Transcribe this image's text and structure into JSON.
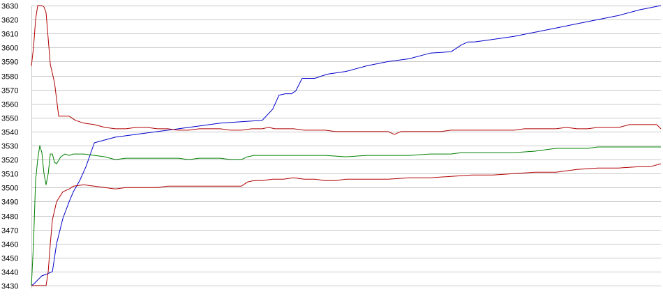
{
  "chart_data": {
    "type": "line",
    "title": "",
    "xlabel": "",
    "ylabel": "",
    "ylim": [
      3430,
      3630
    ],
    "xlim": [
      0,
      300
    ],
    "grid": true,
    "yticks": [
      3430,
      3440,
      3450,
      3460,
      3470,
      3480,
      3490,
      3500,
      3510,
      3520,
      3530,
      3540,
      3550,
      3560,
      3570,
      3580,
      3590,
      3600,
      3610,
      3620,
      3630
    ],
    "colors": {
      "blue": "#0000cc",
      "upper_red": "#b00000",
      "green": "#008000",
      "lower_red": "#b00000",
      "grid": "#c8c8c8"
    },
    "series": [
      {
        "key": "blue",
        "x": [
          0,
          1,
          3,
          5,
          7,
          10,
          12,
          15,
          18,
          20,
          23,
          26,
          30,
          40,
          50,
          60,
          70,
          80,
          90,
          100,
          110,
          115,
          118,
          121,
          124,
          126,
          127,
          129,
          135,
          141,
          150,
          160,
          170,
          180,
          190,
          200,
          205,
          208,
          211,
          216,
          230,
          240,
          250,
          260,
          270,
          280,
          290,
          300
        ],
        "y": [
          3430,
          3431,
          3434,
          3437,
          3438,
          3440,
          3460,
          3478,
          3490,
          3497,
          3505,
          3515,
          3532,
          3536,
          3538,
          3540,
          3542,
          3544,
          3546,
          3547,
          3548,
          3556,
          3566,
          3567,
          3567,
          3569,
          3572,
          3578,
          3578,
          3581,
          3583,
          3587,
          3590,
          3592,
          3596,
          3597,
          3602,
          3604,
          3604,
          3605,
          3608,
          3611,
          3614,
          3617,
          3620,
          3623,
          3627,
          3630
        ]
      },
      {
        "key": "upper_red",
        "x": [
          0,
          1,
          2,
          3,
          4,
          5,
          6,
          7,
          9,
          11,
          13,
          15,
          18,
          21,
          25,
          30,
          35,
          40,
          45,
          50,
          55,
          60,
          65,
          70,
          75,
          80,
          85,
          90,
          95,
          100,
          105,
          110,
          113,
          116,
          120,
          125,
          130,
          135,
          140,
          145,
          150,
          155,
          160,
          165,
          170,
          173,
          176,
          180,
          185,
          190,
          195,
          200,
          205,
          210,
          215,
          220,
          225,
          230,
          235,
          240,
          245,
          250,
          255,
          260,
          265,
          270,
          275,
          280,
          285,
          290,
          295,
          298,
          300
        ],
        "y": [
          3587,
          3600,
          3620,
          3630,
          3630,
          3630,
          3629,
          3625,
          3588,
          3575,
          3551,
          3551,
          3551,
          3548,
          3546,
          3545,
          3543,
          3542,
          3542,
          3543,
          3543,
          3542,
          3542,
          3541,
          3541,
          3542,
          3542,
          3542,
          3541,
          3541,
          3542,
          3542,
          3543,
          3542,
          3542,
          3542,
          3541,
          3541,
          3541,
          3540,
          3540,
          3540,
          3540,
          3540,
          3540,
          3538,
          3540,
          3540,
          3540,
          3540,
          3540,
          3541,
          3541,
          3541,
          3541,
          3541,
          3541,
          3541,
          3542,
          3542,
          3542,
          3542,
          3543,
          3542,
          3542,
          3543,
          3543,
          3543,
          3545,
          3545,
          3545,
          3545,
          3542
        ]
      },
      {
        "key": "green",
        "x": [
          0,
          1,
          2,
          3,
          4,
          5,
          6,
          7,
          8,
          9,
          10,
          11,
          12,
          14,
          16,
          18,
          20,
          25,
          30,
          35,
          40,
          45,
          50,
          55,
          60,
          65,
          70,
          75,
          80,
          85,
          90,
          95,
          100,
          103,
          106,
          110,
          115,
          120,
          130,
          140,
          150,
          160,
          170,
          180,
          190,
          200,
          205,
          210,
          220,
          230,
          240,
          245,
          250,
          255,
          260,
          265,
          270,
          280,
          290,
          300
        ],
        "y": [
          3430,
          3460,
          3505,
          3520,
          3530,
          3525,
          3510,
          3502,
          3510,
          3524,
          3524,
          3518,
          3517,
          3522,
          3524,
          3523,
          3524,
          3524,
          3523,
          3522,
          3520,
          3521,
          3521,
          3521,
          3521,
          3521,
          3521,
          3520,
          3521,
          3521,
          3521,
          3520,
          3520,
          3522,
          3523,
          3523,
          3523,
          3523,
          3523,
          3523,
          3522,
          3523,
          3523,
          3523,
          3524,
          3524,
          3525,
          3525,
          3525,
          3525,
          3526,
          3527,
          3528,
          3528,
          3528,
          3528,
          3529,
          3529,
          3529,
          3529
        ]
      },
      {
        "key": "lower_red",
        "x": [
          0,
          1,
          2,
          3,
          4,
          5,
          6,
          7,
          8,
          9,
          10,
          12,
          15,
          18,
          20,
          25,
          30,
          35,
          40,
          45,
          50,
          55,
          60,
          65,
          70,
          75,
          80,
          85,
          90,
          95,
          100,
          103,
          106,
          110,
          115,
          120,
          125,
          130,
          135,
          140,
          145,
          150,
          160,
          170,
          180,
          190,
          200,
          210,
          220,
          230,
          240,
          250,
          255,
          260,
          270,
          280,
          290,
          295,
          300
        ],
        "y": [
          3430,
          3430,
          3430,
          3430,
          3430,
          3430,
          3430,
          3430,
          3440,
          3460,
          3477,
          3490,
          3497,
          3499,
          3501,
          3502,
          3501,
          3500,
          3499,
          3500,
          3500,
          3500,
          3500,
          3501,
          3501,
          3501,
          3501,
          3501,
          3501,
          3501,
          3501,
          3504,
          3505,
          3505,
          3506,
          3506,
          3507,
          3506,
          3506,
          3505,
          3505,
          3506,
          3506,
          3506,
          3507,
          3507,
          3508,
          3509,
          3509,
          3510,
          3511,
          3511,
          3512,
          3513,
          3514,
          3514,
          3515,
          3515,
          3517
        ]
      }
    ]
  }
}
